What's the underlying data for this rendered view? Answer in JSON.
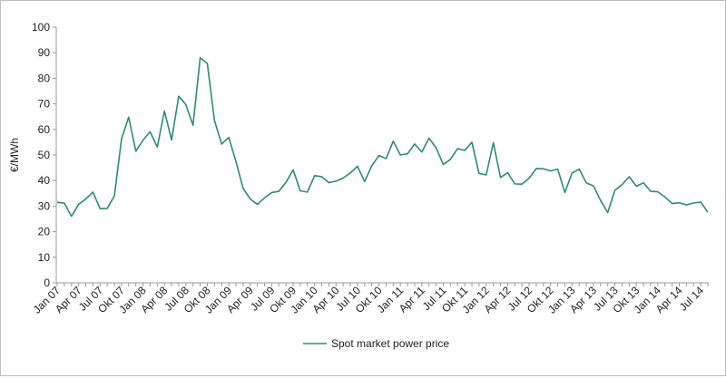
{
  "chart_data": {
    "type": "line",
    "title": "",
    "xlabel": "",
    "ylabel": "€/MWh",
    "ylim": [
      0,
      100
    ],
    "yticks": [
      0,
      10,
      20,
      30,
      40,
      50,
      60,
      70,
      80,
      90,
      100
    ],
    "grid": "off",
    "legend_position": "bottom-center",
    "colors": {
      "line": "#2e8b74",
      "axis": "#999999",
      "frame": "#bfbfbf"
    },
    "x_tick_labels": [
      "Jan 07",
      "Apr 07",
      "Jul 07",
      "Okt 07",
      "Jan 08",
      "Apr 08",
      "Jul 08",
      "Okt 08",
      "Jan 09",
      "Apr 09",
      "Jul 09",
      "Okt 09",
      "Jan 10",
      "Apr 10",
      "Jul 10",
      "Okt 10",
      "Jan 11",
      "Apr 11",
      "Jul 11",
      "Okt 11",
      "Jan 12",
      "Apr 12",
      "Jul 12",
      "Okt 12",
      "Jan 13",
      "Apr 13",
      "Jul 13",
      "Okt 13",
      "Jan 14",
      "Apr 14",
      "Jul 14"
    ],
    "x": [
      "Jan 07",
      "Feb 07",
      "Mar 07",
      "Apr 07",
      "May 07",
      "Jun 07",
      "Jul 07",
      "Aug 07",
      "Sep 07",
      "Okt 07",
      "Nov 07",
      "Dec 07",
      "Jan 08",
      "Feb 08",
      "Mar 08",
      "Apr 08",
      "May 08",
      "Jun 08",
      "Jul 08",
      "Aug 08",
      "Sep 08",
      "Okt 08",
      "Nov 08",
      "Dec 08",
      "Jan 09",
      "Feb 09",
      "Mar 09",
      "Apr 09",
      "May 09",
      "Jun 09",
      "Jul 09",
      "Aug 09",
      "Sep 09",
      "Okt 09",
      "Nov 09",
      "Dec 09",
      "Jan 10",
      "Feb 10",
      "Mar 10",
      "Apr 10",
      "May 10",
      "Jun 10",
      "Jul 10",
      "Aug 10",
      "Sep 10",
      "Okt 10",
      "Nov 10",
      "Dec 10",
      "Jan 11",
      "Feb 11",
      "Mar 11",
      "Apr 11",
      "May 11",
      "Jun 11",
      "Jul 11",
      "Aug 11",
      "Sep 11",
      "Okt 11",
      "Nov 11",
      "Dec 11",
      "Jan 12",
      "Feb 12",
      "Mar 12",
      "Apr 12",
      "May 12",
      "Jun 12",
      "Jul 12",
      "Aug 12",
      "Sep 12",
      "Okt 12",
      "Nov 12",
      "Dec 12",
      "Jan 13",
      "Feb 13",
      "Mar 13",
      "Apr 13",
      "May 13",
      "Jun 13",
      "Jul 13",
      "Aug 13",
      "Sep 13",
      "Okt 13",
      "Nov 13",
      "Dec 13",
      "Jan 14",
      "Feb 14",
      "Mar 14",
      "Apr 14",
      "May 14",
      "Jun 14",
      "Jul 14",
      "Aug 14"
    ],
    "series": [
      {
        "name": "Spot market power price",
        "values": [
          31.5,
          31.2,
          26.0,
          30.7,
          32.8,
          35.5,
          29.0,
          29.1,
          34.0,
          56.3,
          64.8,
          51.5,
          55.8,
          59.1,
          53.1,
          67.2,
          55.9,
          73.0,
          69.7,
          61.6,
          88.0,
          85.8,
          63.5,
          54.3,
          56.9,
          47.5,
          37.0,
          32.8,
          30.7,
          33.2,
          35.3,
          35.8,
          39.3,
          44.2,
          36.0,
          35.5,
          41.9,
          41.5,
          39.2,
          39.8,
          41.0,
          43.0,
          45.6,
          39.6,
          45.8,
          49.8,
          48.6,
          55.4,
          50.0,
          50.5,
          54.3,
          51.2,
          56.6,
          52.8,
          46.3,
          48.3,
          52.5,
          51.8,
          55.0,
          42.8,
          42.2,
          54.8,
          41.2,
          43.1,
          38.7,
          38.6,
          40.9,
          44.7,
          44.6,
          43.8,
          44.5,
          35.3,
          42.9,
          44.5,
          39.1,
          37.9,
          32.2,
          27.5,
          36.2,
          38.4,
          41.5,
          37.8,
          39.1,
          35.8,
          35.6,
          33.6,
          31.0,
          31.3,
          30.5,
          31.2,
          31.6,
          27.6
        ]
      }
    ]
  }
}
